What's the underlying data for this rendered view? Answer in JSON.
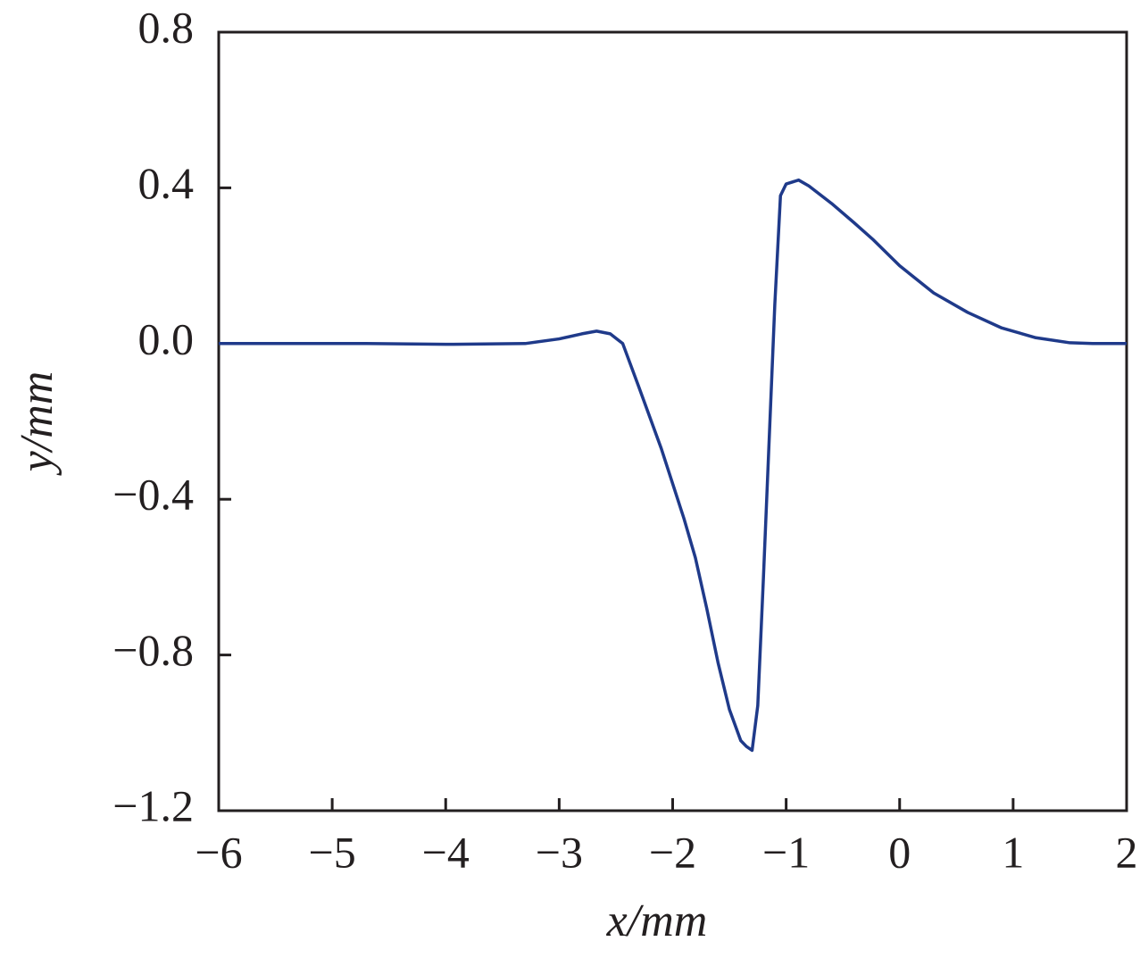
{
  "chart_data": {
    "type": "line",
    "x_label": "x/mm",
    "y_label": "y/mm",
    "xlim": [
      -6,
      2
    ],
    "ylim": [
      -1.2,
      0.8
    ],
    "xticks": [
      {
        "value": -6,
        "label": "−6"
      },
      {
        "value": -5,
        "label": "−5"
      },
      {
        "value": -4,
        "label": "−4"
      },
      {
        "value": -3,
        "label": "−3"
      },
      {
        "value": -2,
        "label": "−2"
      },
      {
        "value": -1,
        "label": "−1"
      },
      0,
      1,
      2
    ],
    "yticks": [
      {
        "value": -1.2,
        "label": "−1.2"
      },
      {
        "value": -0.8,
        "label": "−0.8"
      },
      {
        "value": -0.4,
        "label": "−0.4"
      },
      {
        "value": 0,
        "label": "0.0"
      },
      0.4,
      0.8
    ],
    "grid": false,
    "series": [
      {
        "color": "#1f3a8a",
        "x": [
          -6,
          -4.7,
          -4,
          -3.3,
          -3,
          -2.8,
          -2.67,
          -2.55,
          -2.44,
          -2.3,
          -2.1,
          -1.9,
          -1.8,
          -1.7,
          -1.6,
          -1.5,
          -1.4,
          -1.35,
          -1.3,
          -1.25,
          -1.2,
          -1.15,
          -1.1,
          -1.05,
          -1.0,
          -0.89,
          -0.8,
          -0.6,
          -0.4,
          -0.23,
          0,
          0.3,
          0.6,
          0.9,
          1.2,
          1.5,
          1.7,
          2
        ],
        "values": [
          0,
          0,
          -0.002,
          0,
          0.012,
          0.025,
          0.032,
          0.025,
          0.0,
          -0.11,
          -0.27,
          -0.45,
          -0.55,
          -0.68,
          -0.82,
          -0.94,
          -1.02,
          -1.035,
          -1.045,
          -0.93,
          -0.6,
          -0.25,
          0.1,
          0.38,
          0.41,
          0.42,
          0.405,
          0.36,
          0.31,
          0.266,
          0.2,
          0.13,
          0.08,
          0.04,
          0.015,
          0.002,
          0,
          0
        ]
      }
    ]
  }
}
